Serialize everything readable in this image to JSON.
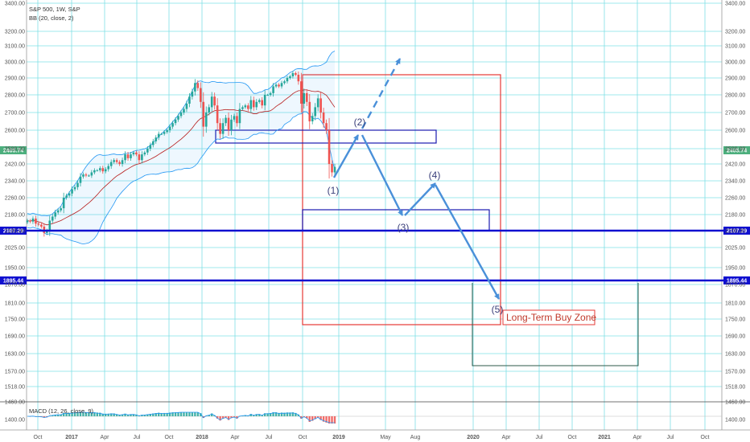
{
  "chart_data": {
    "type": "candlestick",
    "symbol_line": "S&P 500, 1W, S&P",
    "bb_line": "BB (20, close, 2)",
    "macd_line": "MACD (12, 26, close, 9)",
    "y_ticks": [
      "3400.00",
      "3200.00",
      "3100.00",
      "3000.00",
      "2900.00",
      "2800.00",
      "2700.00",
      "2600.00",
      "2500.00",
      "2420.00",
      "2340.00",
      "2260.00",
      "2180.00",
      "2100.00",
      "2025.00",
      "1950.00",
      "1870.00",
      "1810.00",
      "1750.00",
      "1690.00",
      "1630.00",
      "1570.00",
      "1518.00",
      "1460.00",
      "1400.00"
    ],
    "x_ticks": [
      "Oct",
      "2017",
      "Apr",
      "Jul",
      "Oct",
      "2018",
      "Apr",
      "Jul",
      "Oct",
      "2019",
      "May",
      "Aug",
      "2020",
      "Apr",
      "Jul",
      "Oct",
      "2021",
      "Apr",
      "Jul",
      "Oct"
    ],
    "price_badge": {
      "label": "2405.74",
      "color": "#4caf7d"
    },
    "horizontal_levels": [
      {
        "label": "2107.29",
        "color": "#1010d0"
      },
      {
        "label": "1895.44",
        "color": "#1010d0"
      }
    ],
    "wave_labels": [
      "(1)",
      "(2)",
      "(3)",
      "(4)",
      "(5)"
    ],
    "zone_label": "Long-Term Buy Zone",
    "colors": {
      "up": "#26a69a",
      "down": "#ef5350",
      "grid": "#7fe0e6",
      "bb": "#2196f3",
      "arrow": "#4a90d9",
      "box_red": "#e53935",
      "box_blue": "#1a1ab0"
    },
    "weekly_closes": [
      2150,
      2145,
      2160,
      2135,
      2130,
      2120,
      2090,
      2100,
      2150,
      2170,
      2190,
      2200,
      2210,
      2260,
      2270,
      2280,
      2300,
      2310,
      2330,
      2360,
      2370,
      2365,
      2365,
      2380,
      2390,
      2390,
      2400,
      2385,
      2395,
      2410,
      2430,
      2440,
      2430,
      2420,
      2440,
      2470,
      2450,
      2470,
      2480,
      2470,
      2440,
      2470,
      2480,
      2500,
      2520,
      2540,
      2560,
      2580,
      2580,
      2590,
      2600,
      2620,
      2640,
      2660,
      2680,
      2700,
      2720,
      2750,
      2790,
      2820,
      2870,
      2840,
      2760,
      2620,
      2700,
      2730,
      2790,
      2740,
      2640,
      2580,
      2640,
      2670,
      2600,
      2660,
      2680,
      2640,
      2720,
      2730,
      2740,
      2720,
      2770,
      2730,
      2760,
      2770,
      2740,
      2800,
      2800,
      2810,
      2850,
      2860,
      2850,
      2870,
      2880,
      2900,
      2910,
      2930,
      2920,
      2880,
      2750,
      2810,
      2760,
      2650,
      2680,
      2730,
      2780,
      2700,
      2640,
      2600,
      2420,
      2380,
      2405.74
    ]
  }
}
